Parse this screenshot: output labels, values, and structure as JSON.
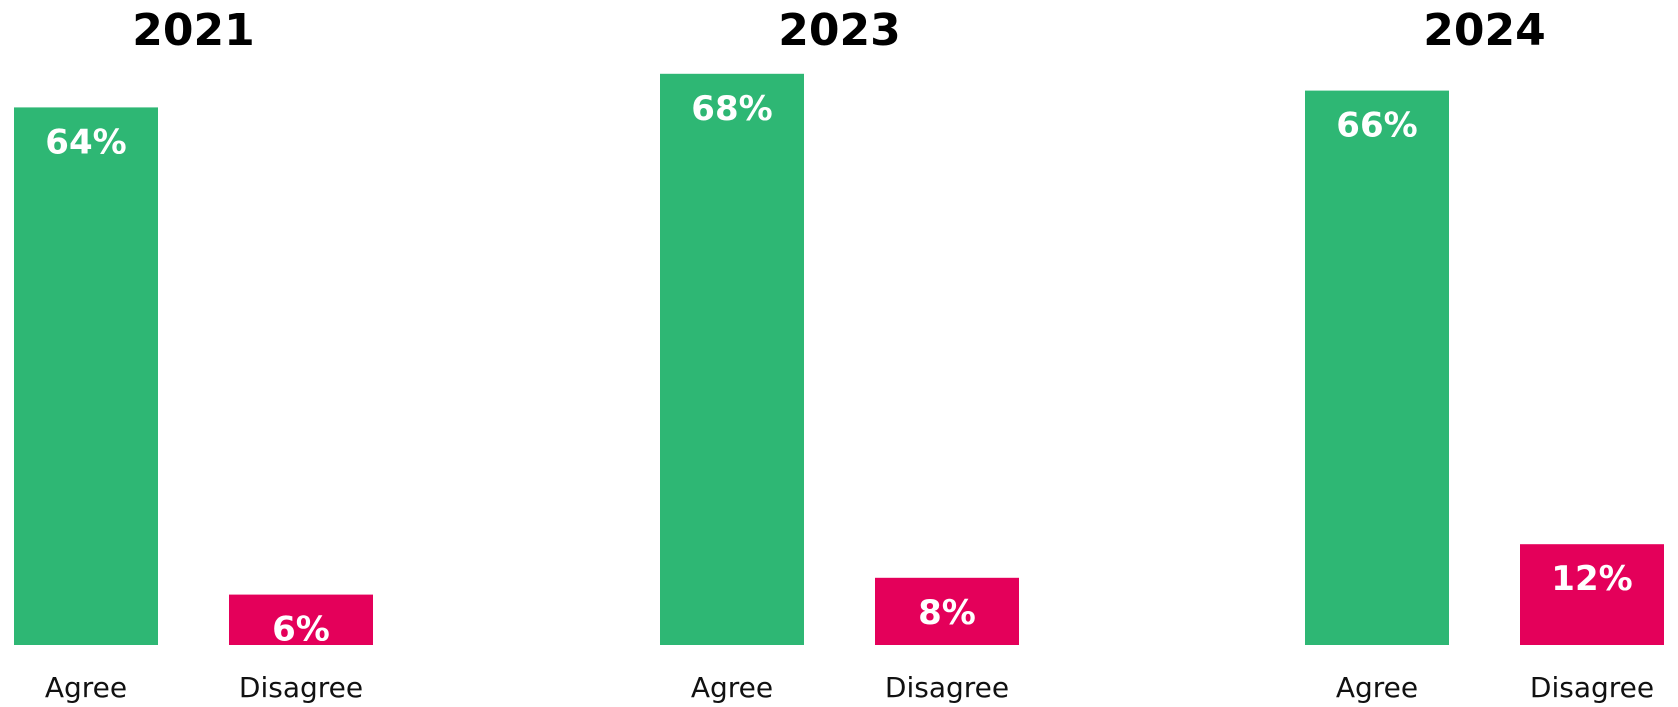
{
  "chart_data": [
    {
      "type": "bar",
      "title": "2021",
      "categories": [
        "Agree",
        "Disagree"
      ],
      "values": [
        64,
        6
      ],
      "value_labels": [
        "64%",
        "6%"
      ],
      "colors": [
        "#2eb774",
        "#e4005a"
      ]
    },
    {
      "type": "bar",
      "title": "2023",
      "categories": [
        "Agree",
        "Disagree"
      ],
      "values": [
        68,
        8
      ],
      "value_labels": [
        "68%",
        "8%"
      ],
      "colors": [
        "#2eb774",
        "#e4005a"
      ]
    },
    {
      "type": "bar",
      "title": "2024",
      "categories": [
        "Agree",
        "Disagree"
      ],
      "values": [
        66,
        12
      ],
      "value_labels": [
        "66%",
        "12%"
      ],
      "colors": [
        "#2eb774",
        "#e4005a"
      ]
    }
  ]
}
